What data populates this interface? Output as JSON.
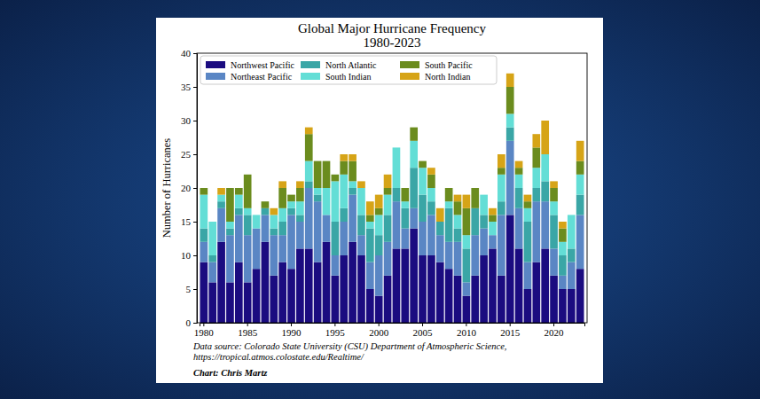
{
  "chart_data": {
    "type": "bar",
    "stacked": true,
    "title": "Global Major Hurricane Frequency",
    "subtitle": "1980-2023",
    "y_label": "Number of Hurricanes",
    "annotations": [
      "Data source: Colorado State University (CSU) Department of Atmospheric Science,",
      "https://tropical.atmos.colostate.edu/Realtime/",
      "Chart: Chris Martz"
    ],
    "categories": [
      "1980",
      null,
      null,
      null,
      null,
      "1985",
      null,
      null,
      null,
      null,
      "1990",
      null,
      null,
      null,
      null,
      "1995",
      null,
      null,
      null,
      null,
      "2000",
      null,
      null,
      null,
      null,
      "2005",
      null,
      null,
      null,
      null,
      "2010",
      null,
      null,
      null,
      null,
      "2015",
      null,
      null,
      null,
      null,
      "2020",
      null,
      null,
      null
    ],
    "series": [
      {
        "name": "Northwest Pacific",
        "color": "#1b0c80",
        "values": [
          9,
          6,
          12,
          6,
          9,
          6,
          8,
          12,
          7,
          9,
          8,
          11,
          11,
          9,
          12,
          7,
          10,
          12,
          10,
          5,
          4,
          7,
          11,
          11,
          14,
          10,
          10,
          9,
          8,
          7,
          4,
          7,
          10,
          11,
          7,
          16,
          11,
          5,
          9,
          11,
          7,
          5,
          5,
          8
        ]
      },
      {
        "name": "Northeast Pacific",
        "color": "#5a86c4",
        "values": [
          3,
          3,
          5,
          7,
          7,
          7,
          6,
          4,
          6,
          4,
          8,
          4,
          9,
          9,
          4,
          3,
          5,
          7,
          3,
          4,
          6,
          5,
          7,
          3,
          3,
          5,
          6,
          4,
          4,
          5,
          2,
          6,
          4,
          2,
          9,
          11,
          6,
          4,
          9,
          7,
          4,
          2,
          4,
          8
        ]
      },
      {
        "name": "North Atlantic",
        "color": "#3aa6a6",
        "values": [
          2,
          1,
          1,
          1,
          1,
          3,
          0,
          1,
          1,
          2,
          1,
          1,
          1,
          1,
          0,
          5,
          2,
          1,
          3,
          5,
          3,
          4,
          2,
          3,
          6,
          4,
          2,
          2,
          5,
          2,
          5,
          4,
          2,
          0,
          2,
          2,
          3,
          6,
          2,
          3,
          5,
          3,
          2,
          3
        ]
      },
      {
        "name": "South Indian",
        "color": "#63ded6",
        "values": [
          5,
          5,
          1,
          1,
          2,
          1,
          2,
          0,
          2,
          2,
          1,
          2,
          3,
          1,
          4,
          6,
          5,
          1,
          4,
          1,
          3,
          3,
          6,
          1,
          4,
          4,
          2,
          0,
          1,
          2,
          2,
          0,
          3,
          2,
          4,
          2,
          2,
          2,
          3,
          4,
          2,
          2,
          5,
          3
        ]
      },
      {
        "name": "South Pacific",
        "color": "#6b8c1e",
        "values": [
          1,
          0,
          0,
          5,
          1,
          5,
          0,
          1,
          0,
          3,
          1,
          2,
          4,
          4,
          4,
          1,
          2,
          3,
          0,
          1,
          1,
          1,
          0,
          2,
          2,
          1,
          2,
          0,
          2,
          2,
          4,
          3,
          0,
          1,
          1,
          4,
          1,
          1,
          3,
          0,
          2,
          2,
          0,
          2
        ]
      },
      {
        "name": "North Indian",
        "color": "#d6a417",
        "values": [
          0,
          0,
          1,
          0,
          0,
          0,
          0,
          0,
          1,
          1,
          0,
          1,
          1,
          0,
          0,
          0,
          1,
          1,
          1,
          2,
          2,
          2,
          0,
          0,
          0,
          0,
          1,
          2,
          0,
          1,
          2,
          0,
          0,
          1,
          2,
          2,
          1,
          1,
          2,
          5,
          1,
          1,
          0,
          3
        ]
      }
    ],
    "ylim": [
      0,
      40
    ],
    "yticks": [
      0,
      5,
      10,
      15,
      20,
      25,
      30,
      35,
      40
    ],
    "grid": false,
    "legend": "upper left"
  }
}
